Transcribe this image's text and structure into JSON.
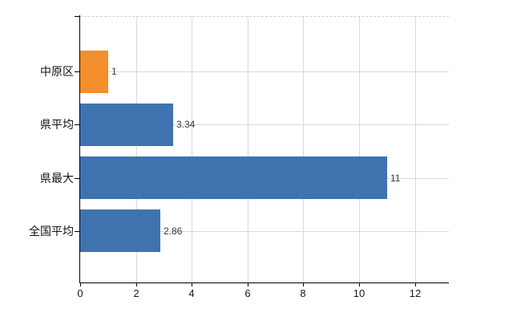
{
  "chart_data": {
    "type": "bar",
    "orientation": "horizontal",
    "title": "",
    "xlabel": "",
    "ylabel": "",
    "categories": [
      "中原区",
      "県平均",
      "県最大",
      "全国平均"
    ],
    "values": [
      1,
      3.34,
      11,
      2.86
    ],
    "value_labels": [
      "1",
      "3.34",
      "11",
      "2.86"
    ],
    "bar_colors": [
      "#f28e2b",
      "#3f73b0",
      "#3f73b0",
      "#3f73b0"
    ],
    "highlight_category": "中原区",
    "x_ticks": [
      0,
      2,
      4,
      6,
      8,
      10,
      12
    ],
    "x_tick_labels": [
      "0",
      "2",
      "4",
      "6",
      "8",
      "10",
      "12"
    ],
    "xlim": [
      0,
      13.2
    ],
    "grid": true,
    "legend": false,
    "colors": {
      "grid": "#d9d9d9",
      "row_grid": "#d6dbd6",
      "axis": "#000000",
      "value_label_text": "#3a3a3a",
      "tick_label_text": "#1a1a1a",
      "category_label_text": "#111111",
      "background": "#ffffff"
    }
  }
}
